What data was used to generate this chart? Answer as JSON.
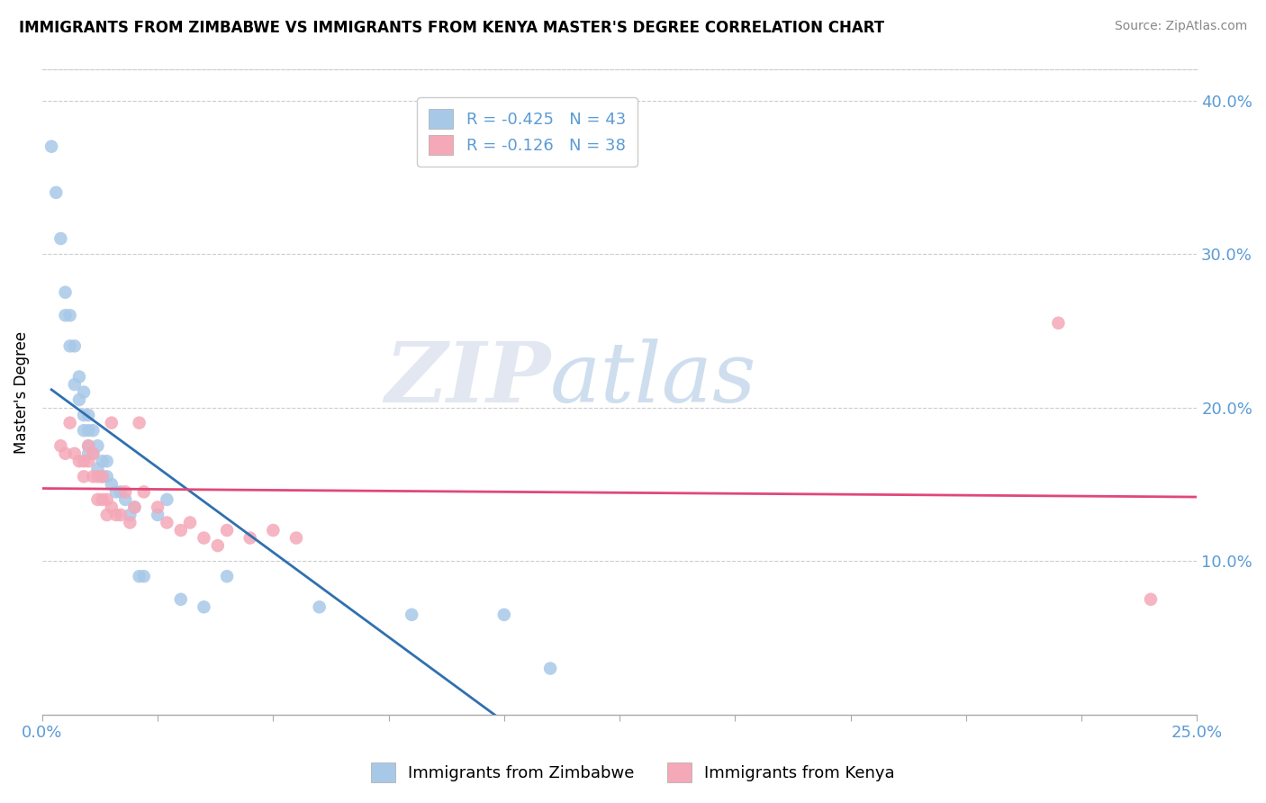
{
  "title": "IMMIGRANTS FROM ZIMBABWE VS IMMIGRANTS FROM KENYA MASTER'S DEGREE CORRELATION CHART",
  "source": "Source: ZipAtlas.com",
  "ylabel": "Master's Degree",
  "right_yticks": [
    10.0,
    20.0,
    30.0,
    40.0
  ],
  "x_lim": [
    0.0,
    0.25
  ],
  "y_lim": [
    0.0,
    0.42
  ],
  "legend1_r": "-0.425",
  "legend1_n": "43",
  "legend2_r": "-0.126",
  "legend2_n": "38",
  "color_zimbabwe": "#a8c8e8",
  "color_kenya": "#f4a8b8",
  "color_zimbabwe_line": "#3070b0",
  "color_kenya_line": "#e04878",
  "color_axis_text": "#5b9bd5",
  "watermark_zip": "ZIP",
  "watermark_atlas": "atlas",
  "zimbabwe_x": [
    0.002,
    0.003,
    0.004,
    0.005,
    0.005,
    0.006,
    0.006,
    0.007,
    0.007,
    0.008,
    0.008,
    0.009,
    0.009,
    0.009,
    0.01,
    0.01,
    0.01,
    0.01,
    0.011,
    0.011,
    0.012,
    0.012,
    0.013,
    0.013,
    0.014,
    0.014,
    0.015,
    0.016,
    0.017,
    0.018,
    0.019,
    0.02,
    0.021,
    0.022,
    0.025,
    0.027,
    0.03,
    0.035,
    0.04,
    0.06,
    0.08,
    0.1,
    0.11
  ],
  "zimbabwe_y": [
    0.37,
    0.34,
    0.31,
    0.275,
    0.26,
    0.26,
    0.24,
    0.24,
    0.215,
    0.22,
    0.205,
    0.21,
    0.195,
    0.185,
    0.195,
    0.185,
    0.175,
    0.17,
    0.185,
    0.17,
    0.175,
    0.16,
    0.165,
    0.155,
    0.165,
    0.155,
    0.15,
    0.145,
    0.145,
    0.14,
    0.13,
    0.135,
    0.09,
    0.09,
    0.13,
    0.14,
    0.075,
    0.07,
    0.09,
    0.07,
    0.065,
    0.065,
    0.03
  ],
  "kenya_x": [
    0.004,
    0.005,
    0.006,
    0.007,
    0.008,
    0.009,
    0.009,
    0.01,
    0.01,
    0.011,
    0.011,
    0.012,
    0.012,
    0.013,
    0.013,
    0.014,
    0.014,
    0.015,
    0.015,
    0.016,
    0.017,
    0.018,
    0.019,
    0.02,
    0.021,
    0.022,
    0.025,
    0.027,
    0.03,
    0.032,
    0.035,
    0.038,
    0.04,
    0.045,
    0.05,
    0.055,
    0.22,
    0.24
  ],
  "kenya_y": [
    0.175,
    0.17,
    0.19,
    0.17,
    0.165,
    0.165,
    0.155,
    0.175,
    0.165,
    0.17,
    0.155,
    0.155,
    0.14,
    0.155,
    0.14,
    0.13,
    0.14,
    0.19,
    0.135,
    0.13,
    0.13,
    0.145,
    0.125,
    0.135,
    0.19,
    0.145,
    0.135,
    0.125,
    0.12,
    0.125,
    0.115,
    0.11,
    0.12,
    0.115,
    0.12,
    0.115,
    0.255,
    0.075
  ]
}
